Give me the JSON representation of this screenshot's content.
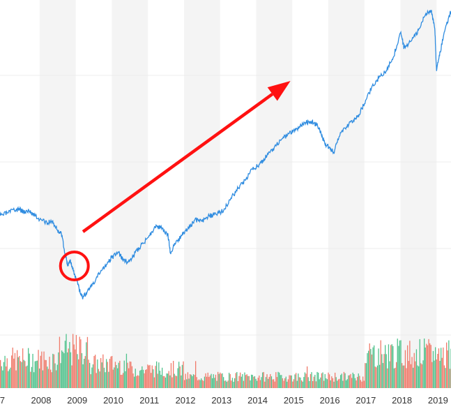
{
  "chart_data": {
    "type": "line",
    "title": "",
    "xlabel": "",
    "ylabel": "",
    "xlim": [
      2006.9,
      2019.4
    ],
    "x_ticks": [
      "7",
      "2008",
      "2009",
      "2010",
      "2011",
      "2012",
      "2013",
      "2014",
      "2015",
      "2016",
      "2017",
      "2018",
      "2019"
    ],
    "grid": "alternating vertical year bands, horizontal gridlines",
    "series": [
      {
        "color": "#2f8ce0",
        "x": [
          2006.9,
          2007.1,
          2007.3,
          2007.45,
          2007.55,
          2007.7,
          2007.8,
          2008.0,
          2008.2,
          2008.35,
          2008.5,
          2008.6,
          2008.72,
          2008.78,
          2008.85,
          2008.95,
          2009.05,
          2009.12,
          2009.2,
          2009.35,
          2009.5,
          2009.7,
          2009.9,
          2010.0,
          2010.2,
          2010.3,
          2010.45,
          2010.6,
          2010.8,
          2011.0,
          2011.2,
          2011.35,
          2011.55,
          2011.62,
          2011.75,
          2011.95,
          2012.1,
          2012.3,
          2012.5,
          2012.7,
          2012.9,
          2013.1,
          2013.3,
          2013.5,
          2013.7,
          2013.9,
          2014.1,
          2014.3,
          2014.5,
          2014.7,
          2014.9,
          2015.1,
          2015.3,
          2015.45,
          2015.6,
          2015.7,
          2015.8,
          2015.9,
          2016.05,
          2016.15,
          2016.3,
          2016.5,
          2016.7,
          2016.85,
          2017.0,
          2017.2,
          2017.4,
          2017.6,
          2017.8,
          2018.0,
          2018.1,
          2018.3,
          2018.5,
          2018.7,
          2018.85,
          2018.95,
          2019.0,
          2019.1,
          2019.25,
          2019.4
        ],
        "y": [
          1420,
          1440,
          1460,
          1470,
          1450,
          1455,
          1440,
          1390,
          1370,
          1380,
          1310,
          1290,
          1120,
          1060,
          1100,
          1000,
          930,
          860,
          820,
          880,
          920,
          1020,
          1080,
          1115,
          1150,
          1100,
          1080,
          1130,
          1200,
          1260,
          1340,
          1330,
          1290,
          1150,
          1210,
          1280,
          1320,
          1390,
          1380,
          1420,
          1430,
          1460,
          1550,
          1620,
          1680,
          1760,
          1800,
          1860,
          1920,
          1980,
          2020,
          2050,
          2090,
          2110,
          2100,
          2080,
          2020,
          1950,
          1920,
          1880,
          2000,
          2070,
          2120,
          2160,
          2240,
          2360,
          2430,
          2480,
          2580,
          2760,
          2650,
          2700,
          2780,
          2900,
          2920,
          2790,
          2480,
          2620,
          2800,
          2920
        ]
      }
    ],
    "volume": {
      "note": "volume bars at bottom, green for up periods and red for down periods",
      "up_color": "#4fc28c",
      "down_color": "#f07a6a"
    },
    "annotations": [
      {
        "type": "circle",
        "at_year": 2009.0,
        "color": "#ff1111"
      },
      {
        "type": "arrow",
        "from_year": 2009.2,
        "to_year": 2014.95,
        "color": "#ff1111"
      }
    ],
    "colors": {
      "band": "#f4f4f4",
      "gridline": "#ececec"
    }
  }
}
